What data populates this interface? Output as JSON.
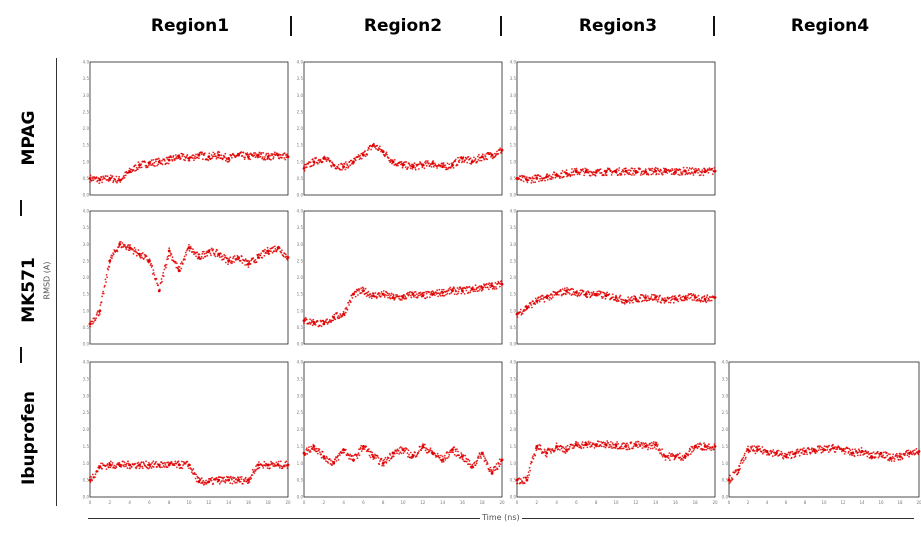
{
  "columns": [
    "Region1",
    "Region2",
    "Region3",
    "Region4"
  ],
  "rows": [
    "MPAG",
    "MK571",
    "Ibuprofen"
  ],
  "colors": {
    "points": "#e00000",
    "frame": "#222222"
  },
  "chart_data": {
    "type": "scatter",
    "xlabel": "Time (ns)",
    "ylabel": "RMSD (A)",
    "ylim": [
      0,
      4.0
    ],
    "yticks": [
      "0.0",
      "0.5",
      "1.0",
      "1.5",
      "2.0",
      "2.5",
      "3.0",
      "3.5",
      "4.0"
    ],
    "xticks": [
      "0",
      "2",
      "4",
      "6",
      "8",
      "10",
      "12",
      "14",
      "16",
      "18",
      "20"
    ],
    "xlim": [
      0,
      20
    ],
    "panels": [
      {
        "row": "MPAG",
        "column": "Region1",
        "x": [
          0,
          1,
          2,
          3,
          4,
          5,
          6,
          7,
          8,
          9,
          10,
          11,
          12,
          13,
          14,
          15,
          16,
          17,
          18,
          19,
          20
        ],
        "y": [
          0.5,
          0.45,
          0.5,
          0.45,
          0.7,
          0.9,
          0.95,
          1.0,
          1.05,
          1.15,
          1.1,
          1.2,
          1.15,
          1.2,
          1.1,
          1.2,
          1.15,
          1.2,
          1.15,
          1.2,
          1.15
        ]
      },
      {
        "row": "MPAG",
        "column": "Region2",
        "x": [
          0,
          1,
          2,
          3,
          4,
          5,
          6,
          7,
          8,
          9,
          10,
          11,
          12,
          13,
          14,
          15,
          16,
          17,
          18,
          19,
          20
        ],
        "y": [
          0.8,
          1.0,
          1.1,
          0.9,
          0.85,
          1.0,
          1.2,
          1.5,
          1.3,
          1.0,
          0.9,
          0.85,
          0.9,
          0.95,
          0.85,
          0.9,
          1.1,
          1.0,
          1.15,
          1.2,
          1.35
        ]
      },
      {
        "row": "MPAG",
        "column": "Region3",
        "x": [
          0,
          1,
          2,
          3,
          4,
          5,
          6,
          7,
          8,
          9,
          10,
          11,
          12,
          13,
          14,
          15,
          16,
          17,
          18,
          19,
          20
        ],
        "y": [
          0.5,
          0.45,
          0.5,
          0.55,
          0.6,
          0.65,
          0.7,
          0.7,
          0.68,
          0.7,
          0.7,
          0.72,
          0.7,
          0.7,
          0.72,
          0.7,
          0.7,
          0.72,
          0.7,
          0.7,
          0.72
        ]
      },
      {
        "row": "MK571",
        "column": "Region1",
        "x": [
          0,
          1,
          2,
          3,
          4,
          5,
          6,
          7,
          8,
          9,
          10,
          11,
          12,
          13,
          14,
          15,
          16,
          17,
          18,
          19,
          20
        ],
        "y": [
          0.6,
          1.0,
          2.5,
          3.0,
          2.9,
          2.7,
          2.5,
          1.6,
          2.8,
          2.2,
          2.9,
          2.6,
          2.8,
          2.7,
          2.5,
          2.6,
          2.4,
          2.6,
          2.8,
          2.9,
          2.6
        ]
      },
      {
        "row": "MK571",
        "column": "Region2",
        "x": [
          0,
          1,
          2,
          3,
          4,
          5,
          6,
          7,
          8,
          9,
          10,
          11,
          12,
          13,
          14,
          15,
          16,
          17,
          18,
          19,
          20
        ],
        "y": [
          0.7,
          0.65,
          0.6,
          0.8,
          0.9,
          1.5,
          1.6,
          1.45,
          1.5,
          1.4,
          1.4,
          1.5,
          1.45,
          1.5,
          1.55,
          1.6,
          1.6,
          1.65,
          1.7,
          1.75,
          1.8
        ]
      },
      {
        "row": "MK571",
        "column": "Region3",
        "x": [
          0,
          1,
          2,
          3,
          4,
          5,
          6,
          7,
          8,
          9,
          10,
          11,
          12,
          13,
          14,
          15,
          16,
          17,
          18,
          19,
          20
        ],
        "y": [
          0.9,
          1.1,
          1.3,
          1.4,
          1.5,
          1.6,
          1.55,
          1.5,
          1.5,
          1.45,
          1.4,
          1.3,
          1.35,
          1.4,
          1.4,
          1.3,
          1.35,
          1.4,
          1.4,
          1.35,
          1.4
        ]
      },
      {
        "row": "Ibuprofen",
        "column": "Region1",
        "x": [
          0,
          1,
          2,
          3,
          4,
          5,
          6,
          7,
          8,
          9,
          10,
          11,
          12,
          13,
          14,
          15,
          16,
          17,
          18,
          19,
          20
        ],
        "y": [
          0.5,
          0.9,
          0.95,
          0.95,
          0.95,
          0.95,
          0.95,
          0.95,
          0.95,
          0.95,
          0.95,
          0.45,
          0.45,
          0.5,
          0.5,
          0.5,
          0.5,
          0.95,
          0.95,
          0.95,
          0.95
        ]
      },
      {
        "row": "Ibuprofen",
        "column": "Region2",
        "x": [
          0,
          1,
          2,
          3,
          4,
          5,
          6,
          7,
          8,
          9,
          10,
          11,
          12,
          13,
          14,
          15,
          16,
          17,
          18,
          19,
          20
        ],
        "y": [
          1.3,
          1.5,
          1.2,
          1.0,
          1.4,
          1.1,
          1.5,
          1.2,
          1.0,
          1.3,
          1.4,
          1.2,
          1.5,
          1.3,
          1.1,
          1.4,
          1.2,
          0.9,
          1.3,
          0.7,
          1.1
        ]
      },
      {
        "row": "Ibuprofen",
        "column": "Region3",
        "x": [
          0,
          1,
          2,
          3,
          4,
          5,
          6,
          7,
          8,
          9,
          10,
          11,
          12,
          13,
          14,
          15,
          16,
          17,
          18,
          19,
          20
        ],
        "y": [
          0.5,
          0.5,
          1.5,
          1.3,
          1.5,
          1.4,
          1.55,
          1.55,
          1.55,
          1.55,
          1.55,
          1.5,
          1.55,
          1.5,
          1.55,
          1.2,
          1.2,
          1.2,
          1.5,
          1.5,
          1.5
        ]
      },
      {
        "row": "Ibuprofen",
        "column": "Region4",
        "x": [
          0,
          1,
          2,
          3,
          4,
          5,
          6,
          7,
          8,
          9,
          10,
          11,
          12,
          13,
          14,
          15,
          16,
          17,
          18,
          19,
          20
        ],
        "y": [
          0.5,
          0.8,
          1.4,
          1.4,
          1.35,
          1.3,
          1.2,
          1.3,
          1.35,
          1.4,
          1.4,
          1.45,
          1.4,
          1.3,
          1.35,
          1.2,
          1.3,
          1.15,
          1.2,
          1.3,
          1.35
        ]
      }
    ]
  }
}
